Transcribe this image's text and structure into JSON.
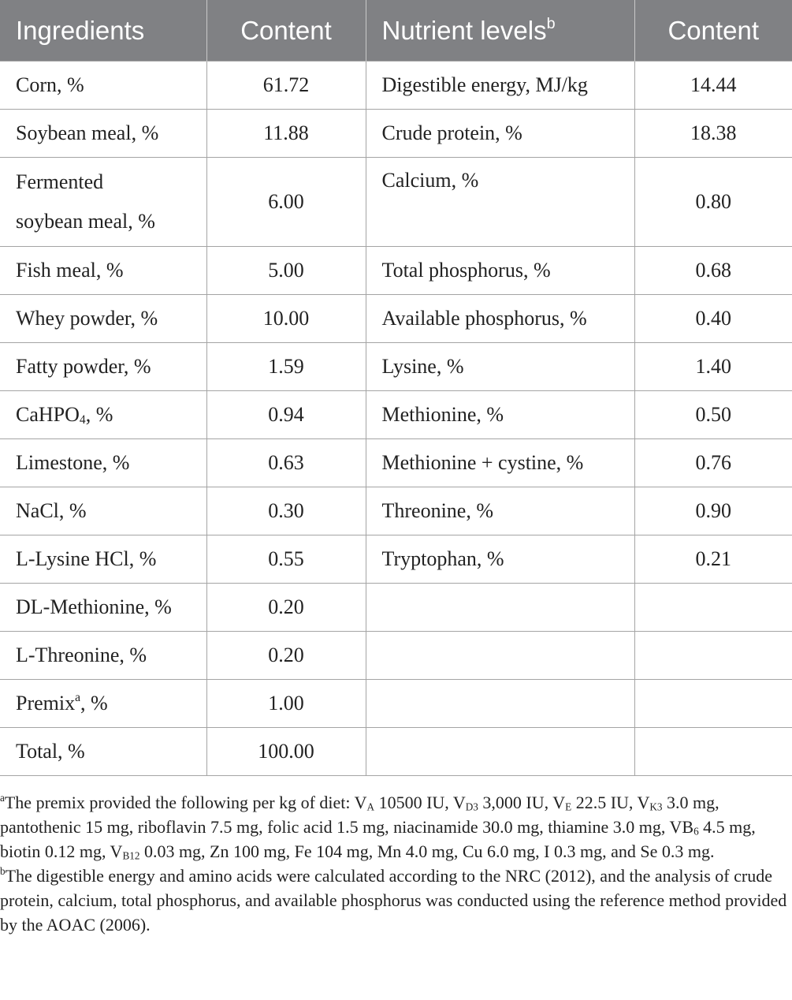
{
  "table": {
    "headers": {
      "ingredients": "Ingredients",
      "content1": "Content",
      "nutrient_levels": "Nutrient levels",
      "nutrient_levels_sup": "b",
      "content2": "Content"
    },
    "rows": [
      {
        "ingredient": "Corn, %",
        "content": "61.72",
        "nutrient": "Digestible energy, MJ/kg",
        "level": "14.44"
      },
      {
        "ingredient": "Soybean meal, %",
        "content": "11.88",
        "nutrient": "Crude protein, %",
        "level": "18.38"
      },
      {
        "ingredient_line1": "Fermented",
        "ingredient_line2": "soybean meal, %",
        "content": "6.00",
        "nutrient": "Calcium, %",
        "level": "0.80"
      },
      {
        "ingredient": "Fish meal, %",
        "content": "5.00",
        "nutrient": "Total phosphorus, %",
        "level": "0.68"
      },
      {
        "ingredient": "Whey powder, %",
        "content": "10.00",
        "nutrient": "Available phosphorus, %",
        "level": "0.40"
      },
      {
        "ingredient": "Fatty powder, %",
        "content": "1.59",
        "nutrient": "Lysine, %",
        "level": "1.40"
      },
      {
        "ingredient_a": "CaHPO",
        "ingredient_sub": "4",
        "ingredient_b": ", %",
        "content": "0.94",
        "nutrient": "Methionine, %",
        "level": "0.50"
      },
      {
        "ingredient": "Limestone, %",
        "content": "0.63",
        "nutrient": "Methionine + cystine, %",
        "level": "0.76"
      },
      {
        "ingredient": "NaCl, %",
        "content": "0.30",
        "nutrient": "Threonine, %",
        "level": "0.90"
      },
      {
        "ingredient": "L-Lysine HCl, %",
        "content": "0.55",
        "nutrient": "Tryptophan, %",
        "level": "0.21"
      },
      {
        "ingredient": "DL-Methionine, %",
        "content": "0.20",
        "nutrient": "",
        "level": ""
      },
      {
        "ingredient": "L-Threonine, %",
        "content": "0.20",
        "nutrient": "",
        "level": ""
      },
      {
        "ingredient_a": "Premix",
        "ingredient_sup": "a",
        "ingredient_b": ", %",
        "content": "1.00",
        "nutrient": "",
        "level": ""
      },
      {
        "ingredient": "Total, %",
        "content": "100.00",
        "nutrient": "",
        "level": ""
      }
    ]
  },
  "footnotes": {
    "a": {
      "marker": "a",
      "t1": "The premix provided the following per kg of diet: V",
      "s1": "A",
      "t2": " 10500 IU, V",
      "s2": "D3",
      "t3": " 3,000 IU, V",
      "s3": "E",
      "t4": " 22.5 IU, V",
      "s4": "K3",
      "t5": " 3.0 mg, pantothenic 15 mg, riboflavin 7.5 mg, folic acid 1.5 mg, niacinamide 30.0 mg, thiamine 3.0 mg, VB",
      "s5": "6",
      "t6": " 4.5 mg, biotin 0.12 mg, V",
      "s6": "B12",
      "t7": " 0.03 mg, Zn 100 mg, Fe 104 mg, Mn 4.0 mg, Cu 6.0 mg, I 0.3 mg, and Se 0.3 mg."
    },
    "b": {
      "marker": "b",
      "text": "The digestible energy and amino acids were calculated according to the NRC (2012), and the analysis of crude protein, calcium, total phosphorus, and available phosphorus was conducted using the reference method provided by the AOAC (2006)."
    }
  }
}
